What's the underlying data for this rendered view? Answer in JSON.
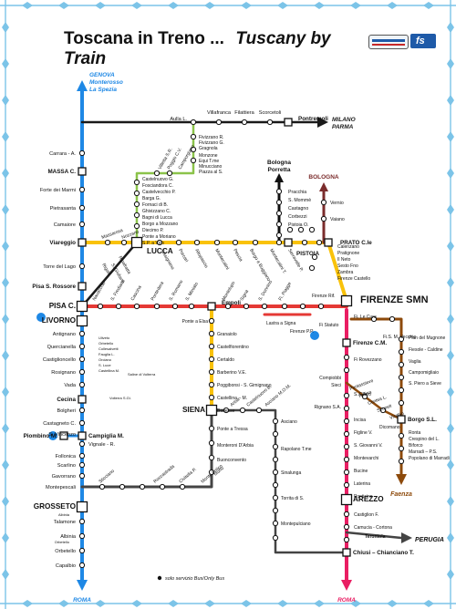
{
  "header": {
    "title_left": "Toscana in Treno ...",
    "title_right": "Tuscany by Train"
  },
  "colors": {
    "tyrrhenian": "#1e88e5",
    "florence_pisa": "#e53935",
    "viareggio_florence": "#f9c20a",
    "pisa_empoli_siena": "#f57f17",
    "lucca_aulla": "#8bc34a",
    "pontremolese": "#1a1a1a",
    "grosseto_siena": "#444444",
    "florence_rome": "#e91e63",
    "faenza": "#8d4a0b",
    "bologna_prato": "#7b2c2c",
    "bologna_porretta": "#111111",
    "lcorner": "#7cc4e8"
  },
  "stations": [
    {
      "name": "Aulla L.",
      "kind": "small"
    },
    {
      "name": "Villafranca",
      "kind": "small"
    },
    {
      "name": "Filattiera",
      "kind": "small"
    },
    {
      "name": "Scorcetoli",
      "kind": "small"
    },
    {
      "name": "Pontremoli",
      "kind": "medium"
    },
    {
      "name": "Carrara - A.",
      "kind": "small"
    },
    {
      "name": "MASSA C.",
      "kind": "medium"
    },
    {
      "name": "Forte dei Marmi",
      "kind": "small"
    },
    {
      "name": "Pietrasanta",
      "kind": "small"
    },
    {
      "name": "Camaiore",
      "kind": "small"
    },
    {
      "name": "Viareggio",
      "kind": "medium"
    },
    {
      "name": "Torre del Lago",
      "kind": "small"
    },
    {
      "name": "Pisa S. Rossore",
      "kind": "medium"
    },
    {
      "name": "PISA C.",
      "kind": "major"
    },
    {
      "name": "LIVORNO",
      "kind": "major"
    },
    {
      "name": "Antignano",
      "kind": "small"
    },
    {
      "name": "Quercianella",
      "kind": "small"
    },
    {
      "name": "Castiglioncello",
      "kind": "small"
    },
    {
      "name": "Rosignano",
      "kind": "small"
    },
    {
      "name": "Vada",
      "kind": "small"
    },
    {
      "name": "Cecina",
      "kind": "medium"
    },
    {
      "name": "Bolgheri",
      "kind": "small"
    },
    {
      "name": "Castagneto C.",
      "kind": "small"
    },
    {
      "name": "S. Vincenzo",
      "kind": "small"
    },
    {
      "name": "Campiglia M.",
      "kind": "medium"
    },
    {
      "name": "Piombino M.",
      "kind": "medium"
    },
    {
      "name": "Vignale - R.",
      "kind": "small"
    },
    {
      "name": "Follonica",
      "kind": "small"
    },
    {
      "name": "Scarlino",
      "kind": "small"
    },
    {
      "name": "Gavorrano",
      "kind": "small"
    },
    {
      "name": "Montepescali",
      "kind": "small"
    },
    {
      "name": "GROSSETO",
      "kind": "major"
    },
    {
      "name": "Talamone",
      "kind": "small"
    },
    {
      "name": "Albinia",
      "kind": "small"
    },
    {
      "name": "Orbetello",
      "kind": "small"
    },
    {
      "name": "Capalbio",
      "kind": "small"
    },
    {
      "name": "LUCCA",
      "kind": "major"
    },
    {
      "name": "Empoli",
      "kind": "medium"
    },
    {
      "name": "SIENA",
      "kind": "major"
    },
    {
      "name": "FIRENZE SMN",
      "kind": "major"
    },
    {
      "name": "PRATO C.le",
      "kind": "medium"
    },
    {
      "name": "PISTOIA",
      "kind": "medium"
    },
    {
      "name": "Firenze C.M.",
      "kind": "medium"
    },
    {
      "name": "AREZZO",
      "kind": "major"
    },
    {
      "name": "Borgo S.L.",
      "kind": "medium"
    },
    {
      "name": "Chiusi – Chianciano T.",
      "kind": "medium"
    }
  ],
  "labels": [
    {
      "t": "GENOVA"
    },
    {
      "t": "Monterosso"
    },
    {
      "t": "La Spezia"
    },
    {
      "t": "MILANO"
    },
    {
      "t": "PARMA"
    },
    {
      "t": "Bologna"
    },
    {
      "t": "Porretta"
    },
    {
      "t": "BOLOGNA"
    },
    {
      "t": "Faenza"
    },
    {
      "t": "PERUGIA"
    },
    {
      "t": "ROMA"
    },
    {
      "t": "ROMA"
    },
    {
      "t": "Vernio"
    },
    {
      "t": "Vaiano"
    },
    {
      "t": "Calenzano"
    },
    {
      "t": "Pratignone"
    },
    {
      "t": "Il Neto"
    },
    {
      "t": "Sesto Fno"
    },
    {
      "t": "Zambra"
    },
    {
      "t": "Firenze Castello"
    },
    {
      "t": "Pracchia"
    },
    {
      "t": "S. Mommè"
    },
    {
      "t": "Castagno"
    },
    {
      "t": "Corbezzi"
    },
    {
      "t": "Pistoia O."
    },
    {
      "t": "Fivizzano R."
    },
    {
      "t": "Fivizzano G."
    },
    {
      "t": "Gragnola"
    },
    {
      "t": "Monzone"
    },
    {
      "t": "Equi T.me"
    },
    {
      "t": "Minucciano"
    },
    {
      "t": "Piazza al S."
    },
    {
      "t": "Villetta S.R."
    },
    {
      "t": "Poggio C.V."
    },
    {
      "t": "Camporgiano"
    },
    {
      "t": "Castelnuovo G."
    },
    {
      "t": "Fosciandora C."
    },
    {
      "t": "Castelvecchio P."
    },
    {
      "t": "Barga G."
    },
    {
      "t": "Fornaci di B."
    },
    {
      "t": "Ghivizzano C."
    },
    {
      "t": "Bagni di Lucca"
    },
    {
      "t": "Borgo a Mozzano"
    },
    {
      "t": "Diecimo P."
    },
    {
      "t": "Ponte a Moriano"
    },
    {
      "t": "S.P. a Vico"
    },
    {
      "t": "Massarosa"
    },
    {
      "t": "Nozzano"
    },
    {
      "t": "Tassignano"
    },
    {
      "t": "Porcari"
    },
    {
      "t": "Altopascio"
    },
    {
      "t": "Montecatini"
    },
    {
      "t": "Pescia"
    },
    {
      "t": "Borgo a Buggiano"
    },
    {
      "t": "Montecatini T."
    },
    {
      "t": "Serravalle P."
    },
    {
      "t": "Rigoli"
    },
    {
      "t": "S. Giuliano"
    },
    {
      "t": "Ripafratta"
    },
    {
      "t": "Navacchio"
    },
    {
      "t": "S. Frediano"
    },
    {
      "t": "Cascina"
    },
    {
      "t": "Pontedera"
    },
    {
      "t": "S. Romano"
    },
    {
      "t": "S. Miniato"
    },
    {
      "t": "Montelupo"
    },
    {
      "t": "Signa"
    },
    {
      "t": "S. Donnino"
    },
    {
      "t": "Fi. Piagge"
    },
    {
      "t": "Firenze Rif."
    },
    {
      "t": "Ponte a Elsa"
    },
    {
      "t": "Granaiolo"
    },
    {
      "t": "Castelfiorentino"
    },
    {
      "t": "Certaldo"
    },
    {
      "t": "Barberino V.E."
    },
    {
      "t": "Poggibonsi - S. Gimignano"
    },
    {
      "t": "Castellina – M."
    },
    {
      "t": "Badesse"
    },
    {
      "t": "Lastra a Signa"
    },
    {
      "t": "Firenze P.P."
    },
    {
      "t": "Fi Statuto"
    },
    {
      "t": "Fi. Le Cure"
    },
    {
      "t": "Fi.S. M. Vecchio"
    },
    {
      "t": "Pian del Mugnone"
    },
    {
      "t": "Fiesole - Caldine"
    },
    {
      "t": "Vaglia"
    },
    {
      "t": "Campomigliaio"
    },
    {
      "t": "S. Piero a Sieve"
    },
    {
      "t": "Ronta"
    },
    {
      "t": "Crespino del L."
    },
    {
      "t": "Biforco"
    },
    {
      "t": "Marradi – P.S."
    },
    {
      "t": "Popolano di Marradi"
    },
    {
      "t": "Fi Rovezzano"
    },
    {
      "t": "Compiobbi"
    },
    {
      "t": "Sieci"
    },
    {
      "t": "Pontassieve"
    },
    {
      "t": "Rufina"
    },
    {
      "t": "Contea L."
    },
    {
      "t": "Scopeti"
    },
    {
      "t": "Vicchio"
    },
    {
      "t": "Dicomano"
    },
    {
      "t": "Rignano S.A."
    },
    {
      "t": "S. Ellero"
    },
    {
      "t": "Incisa"
    },
    {
      "t": "Figline V."
    },
    {
      "t": "S. Giovanni V."
    },
    {
      "t": "Montevarchi"
    },
    {
      "t": "Bucine"
    },
    {
      "t": "Laterina"
    },
    {
      "t": "Ponticino"
    },
    {
      "t": "Castiglion F."
    },
    {
      "t": "Camucia - Cortona"
    },
    {
      "t": "Terontola"
    },
    {
      "t": "Arbia"
    },
    {
      "t": "Castelnuovo B."
    },
    {
      "t": "Asciano M.O.M."
    },
    {
      "t": "Asciano"
    },
    {
      "t": "Rapolano T.me"
    },
    {
      "t": "Sinalunga"
    },
    {
      "t": "Torrita di S."
    },
    {
      "t": "Montepulciano"
    },
    {
      "t": "Ponte a Tressa"
    },
    {
      "t": "Monteroni D'Arbia"
    },
    {
      "t": "Buonconvento"
    },
    {
      "t": "Murlo"
    },
    {
      "t": "Monte Antico"
    },
    {
      "t": "Civitella P."
    },
    {
      "t": "Roccastrada"
    },
    {
      "t": "Sticciano"
    },
    {
      "t": "Uliveto"
    },
    {
      "t": "Orbetello"
    },
    {
      "t": "Collesalvetti"
    },
    {
      "t": "Fauglia L."
    },
    {
      "t": "Orciano"
    },
    {
      "t": "S. Luce"
    },
    {
      "t": "Castellina M."
    },
    {
      "t": "Saline di Volterra"
    },
    {
      "t": "Volterra S.Gi."
    },
    {
      "t": "Albinia"
    },
    {
      "t": "Orbetello"
    }
  ],
  "legend": {
    "bus_only": "solo servizio Bus/Only Bus"
  }
}
